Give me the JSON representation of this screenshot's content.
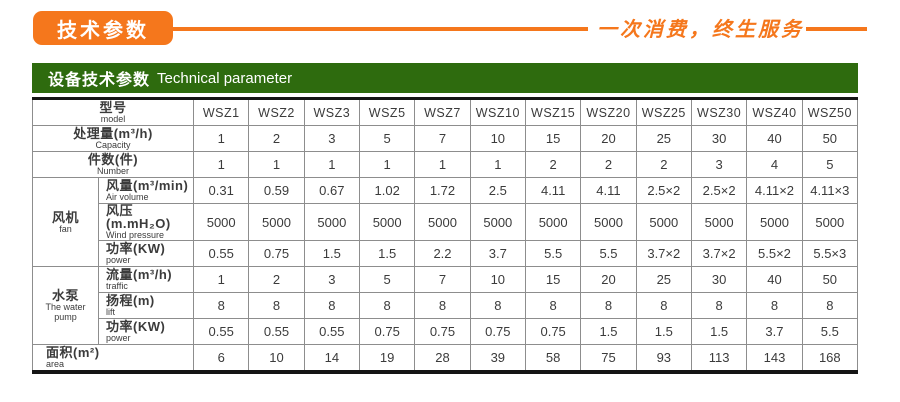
{
  "header_strip": {
    "tag": "技术参数",
    "slogan": "一次消费，终生服务"
  },
  "section_bar": {
    "title_zh": "设备技术参数",
    "title_en": "Technical parameter"
  },
  "colors": {
    "accent_orange": "#f5771c",
    "section_green": "#2e6b0e",
    "border_dark": "#151515",
    "border_gray": "#8d8d8d",
    "text": "#3b3b3b"
  },
  "table": {
    "model_label": {
      "zh": "型号",
      "en": "model"
    },
    "models": [
      "WSZ1",
      "WSZ2",
      "WSZ3",
      "WSZ5",
      "WSZ7",
      "WSZ10",
      "WSZ15",
      "WSZ20",
      "WSZ25",
      "WSZ30",
      "WSZ40",
      "WSZ50"
    ],
    "sections": [
      {
        "type": "row",
        "zh": "处理量(m³/h)",
        "en": "Capacity",
        "align": "center",
        "values": [
          "1",
          "2",
          "3",
          "5",
          "7",
          "10",
          "15",
          "20",
          "25",
          "30",
          "40",
          "50"
        ]
      },
      {
        "type": "row",
        "zh": "件数(件)",
        "en": "Number",
        "align": "center",
        "values": [
          "1",
          "1",
          "1",
          "1",
          "1",
          "1",
          "2",
          "2",
          "2",
          "3",
          "4",
          "5"
        ]
      },
      {
        "type": "group",
        "zh": "风机",
        "en": "fan",
        "rows": [
          {
            "zh": "风量(m³/min)",
            "en": "Air volume",
            "values": [
              "0.31",
              "0.59",
              "0.67",
              "1.02",
              "1.72",
              "2.5",
              "4.11",
              "4.11",
              "2.5×2",
              "2.5×2",
              "4.11×2",
              "4.11×3"
            ]
          },
          {
            "zh": "风压(m.mH₂O)",
            "en": "Wind pressure",
            "values": [
              "5000",
              "5000",
              "5000",
              "5000",
              "5000",
              "5000",
              "5000",
              "5000",
              "5000",
              "5000",
              "5000",
              "5000"
            ]
          },
          {
            "zh": "功率(KW)",
            "en": "power",
            "values": [
              "0.55",
              "0.75",
              "1.5",
              "1.5",
              "2.2",
              "3.7",
              "5.5",
              "5.5",
              "3.7×2",
              "3.7×2",
              "5.5×2",
              "5.5×3"
            ]
          }
        ]
      },
      {
        "type": "group",
        "zh": "水泵",
        "en": "The water pump",
        "rows": [
          {
            "zh": "流量(m³/h)",
            "en": "traffic",
            "values": [
              "1",
              "2",
              "3",
              "5",
              "7",
              "10",
              "15",
              "20",
              "25",
              "30",
              "40",
              "50"
            ]
          },
          {
            "zh": "扬程(m)",
            "en": "lift",
            "values": [
              "8",
              "8",
              "8",
              "8",
              "8",
              "8",
              "8",
              "8",
              "8",
              "8",
              "8",
              "8"
            ]
          },
          {
            "zh": "功率(KW)",
            "en": "power",
            "values": [
              "0.55",
              "0.55",
              "0.55",
              "0.75",
              "0.75",
              "0.75",
              "0.75",
              "1.5",
              "1.5",
              "1.5",
              "3.7",
              "5.5"
            ]
          }
        ]
      },
      {
        "type": "row",
        "zh": "面积(m²)",
        "en": "area",
        "align": "left",
        "values": [
          "6",
          "10",
          "14",
          "19",
          "28",
          "39",
          "58",
          "75",
          "93",
          "113",
          "143",
          "168"
        ]
      }
    ]
  }
}
